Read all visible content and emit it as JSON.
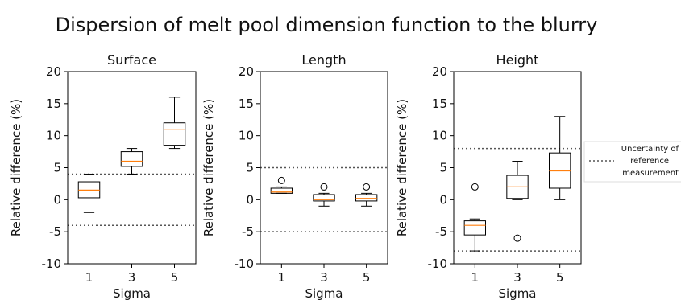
{
  "title": "Dispersion of melt pool dimension function to the blurry",
  "legend": {
    "lines": [
      "Uncertainty of",
      "reference",
      "measurement"
    ],
    "style": "dotted",
    "color": "#555555"
  },
  "colors": {
    "box": "#000000",
    "median": "#ff7f0e",
    "reference": "#555555"
  },
  "chart_data": [
    {
      "type": "box",
      "title": "Surface",
      "xlabel": "Sigma",
      "ylabel": "Relative difference (%)",
      "categories": [
        "1",
        "3",
        "5"
      ],
      "yticks": [
        20,
        15,
        10,
        5,
        0,
        -5,
        -10
      ],
      "ylim": [
        -10,
        20
      ],
      "reference_lines": [
        4,
        -4
      ],
      "boxes": [
        {
          "label": "1",
          "whisker_low": -2,
          "q1": 0.3,
          "median": 1.5,
          "q3": 2.8,
          "whisker_high": 4,
          "outliers": []
        },
        {
          "label": "3",
          "whisker_low": 4,
          "q1": 5.2,
          "median": 6,
          "q3": 7.5,
          "whisker_high": 8,
          "outliers": []
        },
        {
          "label": "5",
          "whisker_low": 8,
          "q1": 8.5,
          "median": 11,
          "q3": 12,
          "whisker_high": 16,
          "outliers": []
        }
      ]
    },
    {
      "type": "box",
      "title": "Length",
      "xlabel": "Sigma",
      "ylabel": "Relative difference (%)",
      "categories": [
        "1",
        "3",
        "5"
      ],
      "yticks": [
        20,
        15,
        10,
        5,
        0,
        -5,
        -10
      ],
      "ylim": [
        -10,
        20
      ],
      "reference_lines": [
        5,
        -5
      ],
      "boxes": [
        {
          "label": "1",
          "whisker_low": 1,
          "q1": 1,
          "median": 1.2,
          "q3": 1.8,
          "whisker_high": 2,
          "outliers": [
            3
          ]
        },
        {
          "label": "3",
          "whisker_low": -1,
          "q1": -0.2,
          "median": 0,
          "q3": 0.8,
          "whisker_high": 1,
          "outliers": [
            2
          ]
        },
        {
          "label": "5",
          "whisker_low": -1,
          "q1": -0.2,
          "median": 0.2,
          "q3": 0.8,
          "whisker_high": 1,
          "outliers": [
            2
          ]
        }
      ]
    },
    {
      "type": "box",
      "title": "Height",
      "xlabel": "Sigma",
      "ylabel": "Relative difference (%)",
      "categories": [
        "1",
        "3",
        "5"
      ],
      "yticks": [
        20,
        15,
        10,
        5,
        0,
        -5,
        -10
      ],
      "ylim": [
        -10,
        20
      ],
      "reference_lines": [
        8,
        -8
      ],
      "boxes": [
        {
          "label": "1",
          "whisker_low": -8,
          "q1": -5.5,
          "median": -4,
          "q3": -3.3,
          "whisker_high": -3,
          "outliers": [
            2
          ]
        },
        {
          "label": "3",
          "whisker_low": 0,
          "q1": 0.2,
          "median": 2,
          "q3": 3.8,
          "whisker_high": 6,
          "outliers": [
            -6
          ]
        },
        {
          "label": "5",
          "whisker_low": 0,
          "q1": 1.8,
          "median": 4.5,
          "q3": 7.3,
          "whisker_high": 13,
          "outliers": []
        }
      ]
    }
  ]
}
